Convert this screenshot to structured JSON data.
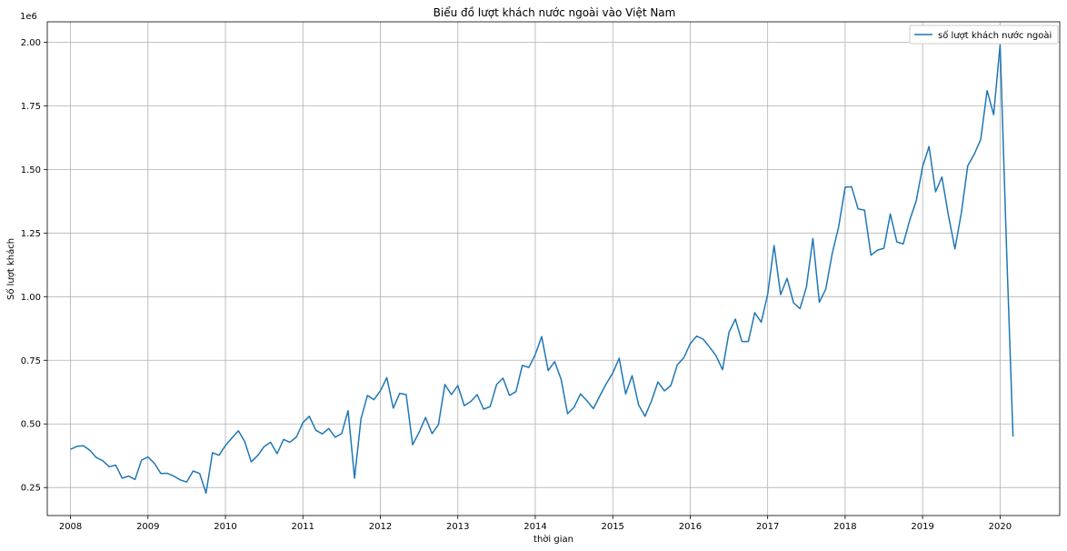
{
  "chart_data": {
    "type": "line",
    "title": "Biểu đồ lượt khách nước ngoài vào Việt Nam",
    "xlabel": "thời gian",
    "ylabel": "Số lượt khách",
    "y_offset_label": "1e6",
    "xlim": [
      2007.7,
      2020.77
    ],
    "ylim": [
      0.14,
      2.08
    ],
    "x_ticks": [
      2008,
      2009,
      2010,
      2011,
      2012,
      2013,
      2014,
      2015,
      2016,
      2017,
      2018,
      2019,
      2020
    ],
    "y_ticks": [
      0.25,
      0.5,
      0.75,
      1.0,
      1.25,
      1.5,
      1.75,
      2.0
    ],
    "y_tick_labels": [
      "0.25",
      "0.50",
      "0.75",
      "1.00",
      "1.25",
      "1.50",
      "1.75",
      "2.00"
    ],
    "grid": true,
    "legend_position": "top-right",
    "series": [
      {
        "name": "số lượt khách nước ngoài",
        "color": "#1f77b4",
        "x": [
          2008.0,
          2008.083,
          2008.167,
          2008.25,
          2008.333,
          2008.417,
          2008.5,
          2008.583,
          2008.667,
          2008.75,
          2008.833,
          2008.917,
          2009.0,
          2009.083,
          2009.167,
          2009.25,
          2009.333,
          2009.417,
          2009.5,
          2009.583,
          2009.667,
          2009.75,
          2009.833,
          2009.917,
          2010.0,
          2010.083,
          2010.167,
          2010.25,
          2010.333,
          2010.417,
          2010.5,
          2010.583,
          2010.667,
          2010.75,
          2010.833,
          2010.917,
          2011.0,
          2011.083,
          2011.167,
          2011.25,
          2011.333,
          2011.417,
          2011.5,
          2011.583,
          2011.667,
          2011.75,
          2011.833,
          2011.917,
          2012.0,
          2012.083,
          2012.167,
          2012.25,
          2012.333,
          2012.417,
          2012.5,
          2012.583,
          2012.667,
          2012.75,
          2012.833,
          2012.917,
          2013.0,
          2013.083,
          2013.167,
          2013.25,
          2013.333,
          2013.417,
          2013.5,
          2013.583,
          2013.667,
          2013.75,
          2013.833,
          2013.917,
          2014.0,
          2014.083,
          2014.167,
          2014.25,
          2014.333,
          2014.417,
          2014.5,
          2014.583,
          2014.667,
          2014.75,
          2014.833,
          2014.917,
          2015.0,
          2015.083,
          2015.167,
          2015.25,
          2015.333,
          2015.417,
          2015.5,
          2015.583,
          2015.667,
          2015.75,
          2015.833,
          2015.917,
          2016.0,
          2016.083,
          2016.167,
          2016.25,
          2016.333,
          2016.417,
          2016.5,
          2016.583,
          2016.667,
          2016.75,
          2016.833,
          2016.917,
          2017.0,
          2017.083,
          2017.167,
          2017.25,
          2017.333,
          2017.417,
          2017.5,
          2017.583,
          2017.667,
          2017.75,
          2017.833,
          2017.917,
          2018.0,
          2018.083,
          2018.167,
          2018.25,
          2018.333,
          2018.417,
          2018.5,
          2018.583,
          2018.667,
          2018.75,
          2018.833,
          2018.917,
          2019.0,
          2019.083,
          2019.167,
          2019.25,
          2019.333,
          2019.417,
          2019.5,
          2019.583,
          2019.667,
          2019.75,
          2019.833,
          2019.917,
          2020.0,
          2020.083,
          2020.167
        ],
        "values": [
          0.4,
          0.412,
          0.414,
          0.396,
          0.368,
          0.355,
          0.332,
          0.338,
          0.287,
          0.295,
          0.282,
          0.358,
          0.37,
          0.345,
          0.305,
          0.306,
          0.295,
          0.28,
          0.272,
          0.315,
          0.305,
          0.228,
          0.387,
          0.377,
          0.415,
          0.444,
          0.473,
          0.43,
          0.351,
          0.376,
          0.411,
          0.428,
          0.383,
          0.439,
          0.428,
          0.449,
          0.505,
          0.53,
          0.475,
          0.461,
          0.482,
          0.448,
          0.462,
          0.552,
          0.287,
          0.52,
          0.612,
          0.595,
          0.63,
          0.682,
          0.562,
          0.62,
          0.615,
          0.418,
          0.467,
          0.525,
          0.462,
          0.497,
          0.655,
          0.615,
          0.651,
          0.572,
          0.588,
          0.615,
          0.558,
          0.568,
          0.655,
          0.68,
          0.612,
          0.627,
          0.73,
          0.722,
          0.773,
          0.843,
          0.71,
          0.745,
          0.675,
          0.54,
          0.565,
          0.618,
          0.591,
          0.56,
          0.61,
          0.658,
          0.7,
          0.758,
          0.618,
          0.69,
          0.575,
          0.53,
          0.59,
          0.665,
          0.63,
          0.651,
          0.732,
          0.76,
          0.815,
          0.845,
          0.833,
          0.802,
          0.768,
          0.713,
          0.86,
          0.912,
          0.824,
          0.824,
          0.937,
          0.9,
          1.01,
          1.201,
          1.008,
          1.072,
          0.976,
          0.953,
          1.038,
          1.229,
          0.978,
          1.03,
          1.17,
          1.275,
          1.43,
          1.432,
          1.345,
          1.34,
          1.163,
          1.183,
          1.19,
          1.325,
          1.215,
          1.207,
          1.3,
          1.376,
          1.51,
          1.59,
          1.412,
          1.47,
          1.32,
          1.188,
          1.33,
          1.514,
          1.56,
          1.618,
          1.81,
          1.715,
          1.99,
          1.2,
          0.45
        ]
      }
    ]
  }
}
